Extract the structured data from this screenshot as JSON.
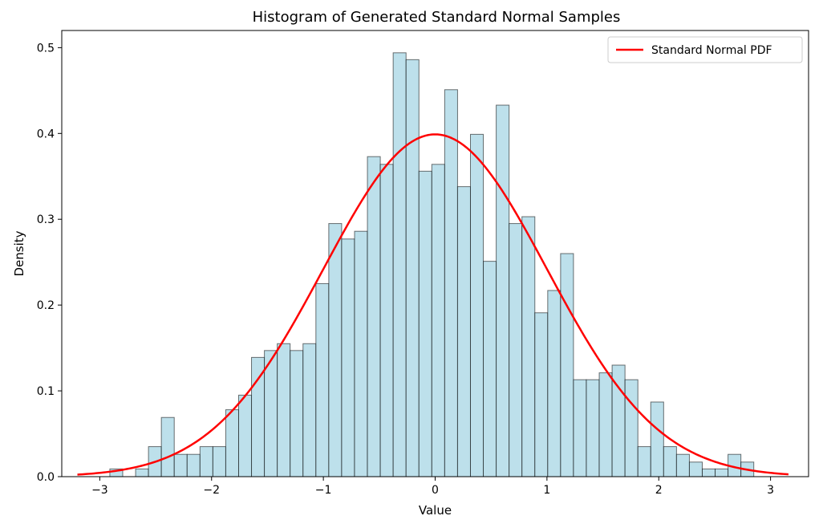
{
  "chart_data": {
    "type": "bar",
    "title": "Histogram of Generated Standard Normal Samples",
    "xlabel": "Value",
    "ylabel": "Density",
    "xlim": [
      -3.34,
      3.34
    ],
    "ylim": [
      0,
      0.52
    ],
    "xticks": [
      -3,
      -2,
      -1,
      0,
      1,
      2,
      3
    ],
    "xtick_labels": [
      "−3",
      "−2",
      "−1",
      "0",
      "1",
      "2",
      "3"
    ],
    "yticks": [
      0.0,
      0.1,
      0.2,
      0.3,
      0.4,
      0.5
    ],
    "ytick_labels": [
      "0.0",
      "0.1",
      "0.2",
      "0.3",
      "0.4",
      "0.5"
    ],
    "grid": false,
    "bins": {
      "start": -2.91,
      "width": 0.1152,
      "densities": [
        0.009,
        0.0,
        0.009,
        0.035,
        0.069,
        0.026,
        0.026,
        0.035,
        0.035,
        0.078,
        0.095,
        0.139,
        0.147,
        0.155,
        0.147,
        0.155,
        0.225,
        0.295,
        0.277,
        0.286,
        0.373,
        0.364,
        0.494,
        0.486,
        0.356,
        0.364,
        0.451,
        0.338,
        0.399,
        0.251,
        0.433,
        0.295,
        0.303,
        0.191,
        0.217,
        0.26,
        0.113,
        0.113,
        0.121,
        0.13,
        0.113,
        0.035,
        0.087,
        0.035,
        0.026,
        0.017,
        0.009,
        0.009,
        0.026,
        0.017
      ],
      "fill_color": "#add8e6",
      "edge_color": "#000000"
    },
    "series": [
      {
        "name": "Standard Normal PDF",
        "type": "line",
        "function": "standard_normal_pdf",
        "x_range": [
          -3.2,
          3.16
        ],
        "color": "#ff0000"
      }
    ],
    "legend": {
      "placement": "upper right",
      "entries": [
        "Standard Normal PDF"
      ]
    }
  }
}
